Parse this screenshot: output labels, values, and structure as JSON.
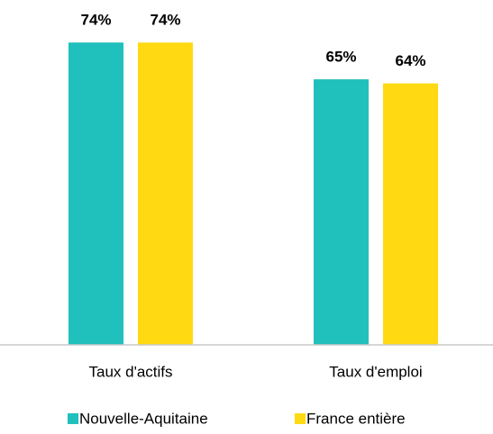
{
  "chart_data": {
    "type": "bar",
    "categories": [
      "Taux d'actifs",
      "Taux d'emploi"
    ],
    "series": [
      {
        "name": "Nouvelle-Aquitaine",
        "color": "#20c0bc",
        "values": [
          74,
          65
        ],
        "value_labels": [
          "74%",
          "65%"
        ]
      },
      {
        "name": "France entière",
        "color": "#ffd912",
        "values": [
          74,
          64
        ],
        "value_labels": [
          "74%",
          "64%"
        ]
      }
    ],
    "ylim": [
      0,
      80
    ]
  }
}
